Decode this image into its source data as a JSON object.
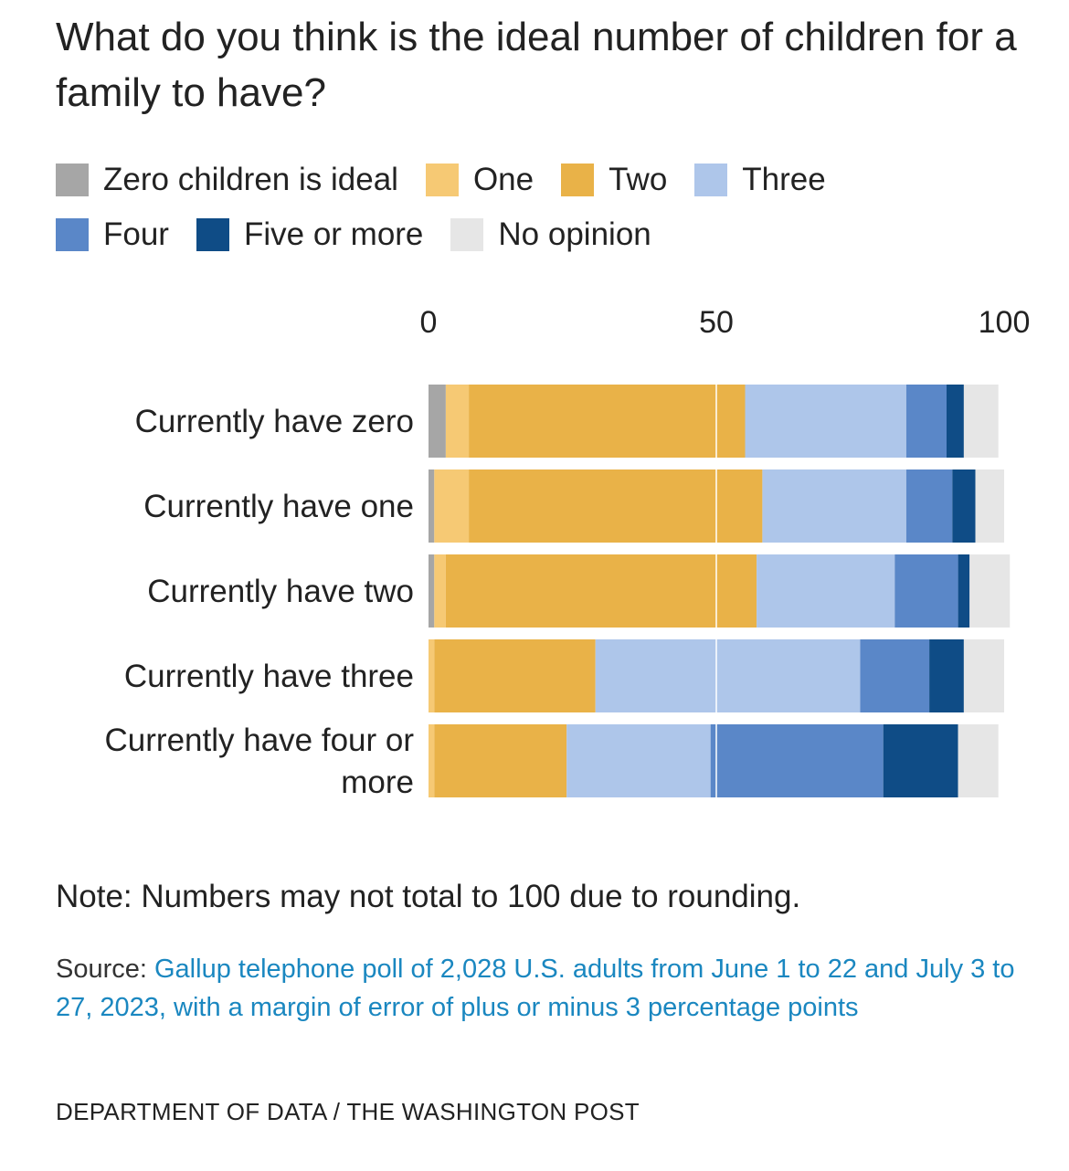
{
  "title": "What do you think is the ideal number of children for a family to have?",
  "legend": [
    {
      "label": "Zero children is ideal",
      "color": "#a6a6a6"
    },
    {
      "label": "One",
      "color": "#f6c974"
    },
    {
      "label": "Two",
      "color": "#e9b248"
    },
    {
      "label": "Three",
      "color": "#aec6ea"
    },
    {
      "label": "Four",
      "color": "#5a87c8"
    },
    {
      "label": "Five or more",
      "color": "#0f4c86"
    },
    {
      "label": "No opinion",
      "color": "#e6e6e6"
    }
  ],
  "chart_data": {
    "type": "bar",
    "orientation": "horizontal",
    "stacked": true,
    "categories": [
      [
        "Currently have zero"
      ],
      [
        "Currently have one"
      ],
      [
        "Currently have two"
      ],
      [
        "Currently have three"
      ],
      [
        "Currently have four or",
        "more"
      ]
    ],
    "xlim": [
      0,
      100
    ],
    "ticks": [
      "0",
      "50",
      "100"
    ],
    "tick_values": [
      0,
      50,
      100
    ],
    "gridline_at": 50,
    "series": [
      {
        "name": "Zero children is ideal",
        "color": "#a6a6a6",
        "values": [
          3,
          1,
          1,
          0,
          0
        ]
      },
      {
        "name": "One",
        "color": "#f6c974",
        "values": [
          4,
          6,
          2,
          1,
          1
        ]
      },
      {
        "name": "Two",
        "color": "#e9b248",
        "values": [
          48,
          51,
          54,
          28,
          23
        ]
      },
      {
        "name": "Three",
        "color": "#aec6ea",
        "values": [
          28,
          25,
          24,
          46,
          25
        ]
      },
      {
        "name": "Four",
        "color": "#5a87c8",
        "values": [
          7,
          8,
          11,
          12,
          30
        ]
      },
      {
        "name": "Five or more",
        "color": "#0f4c86",
        "values": [
          3,
          4,
          2,
          6,
          13
        ]
      },
      {
        "name": "No opinion",
        "color": "#e6e6e6",
        "values": [
          6,
          5,
          7,
          7,
          7
        ]
      }
    ]
  },
  "note": "Note: Numbers may not total to 100 due to rounding.",
  "source": {
    "prefix": "Source: ",
    "text": "Gallup telephone poll of 2,028 U.S. adults from June 1 to 22 and July 3 to 27, 2023, with a margin of error of plus or minus 3 percentage points"
  },
  "credit": "DEPARTMENT OF DATA / THE WASHINGTON POST"
}
